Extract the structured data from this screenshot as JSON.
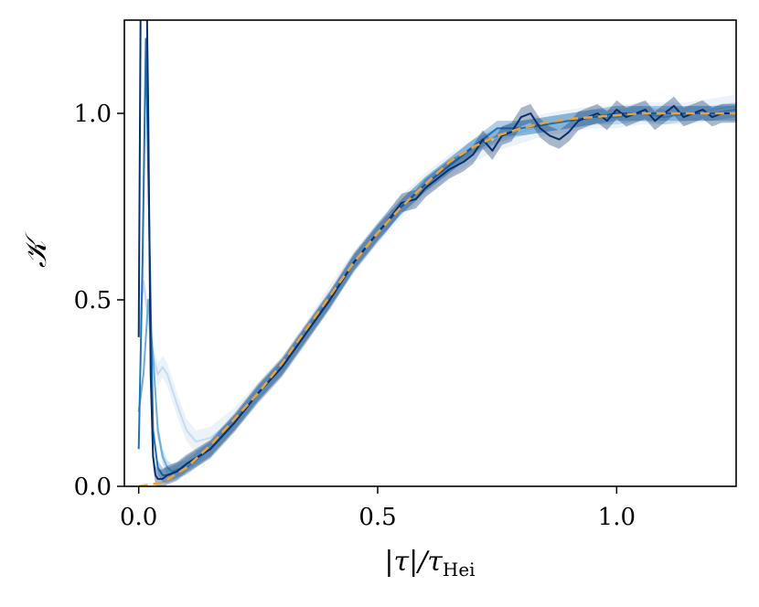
{
  "chart_data": {
    "type": "line",
    "title": "",
    "xlabel_main": "|τ|/τ",
    "xlabel_sub": "Hei",
    "ylabel": "𝒦",
    "xlim": [
      -0.03,
      1.25
    ],
    "ylim": [
      0.0,
      1.25
    ],
    "grid": false,
    "legend": "none",
    "x_ticks": [
      {
        "value": 0.0,
        "label": "0.0"
      },
      {
        "value": 0.5,
        "label": "0.5"
      },
      {
        "value": 1.0,
        "label": "1.0"
      }
    ],
    "y_ticks": [
      {
        "value": 0.0,
        "label": "0.0"
      },
      {
        "value": 0.5,
        "label": "0.5"
      },
      {
        "value": 1.0,
        "label": "1.0"
      }
    ],
    "series": [
      {
        "color": "#c6dbef",
        "band_width": 0.03,
        "x": [
          0.0,
          0.01,
          0.02,
          0.03,
          0.04,
          0.05,
          0.06,
          0.08,
          0.1,
          0.12,
          0.15,
          0.2,
          0.25,
          0.3,
          0.35,
          0.4,
          0.45,
          0.5,
          0.55,
          0.6,
          0.65,
          0.7,
          0.75,
          0.8,
          0.85,
          0.9,
          0.95,
          1.0,
          1.05,
          1.1,
          1.15,
          1.2,
          1.25
        ],
        "y": [
          0.4,
          0.55,
          0.45,
          0.35,
          0.3,
          0.32,
          0.3,
          0.22,
          0.15,
          0.12,
          0.13,
          0.18,
          0.25,
          0.32,
          0.41,
          0.51,
          0.6,
          0.68,
          0.75,
          0.81,
          0.86,
          0.9,
          0.93,
          0.95,
          0.97,
          0.98,
          0.99,
          0.99,
          1.0,
          1.0,
          1.0,
          1.01,
          1.02
        ]
      },
      {
        "color": "#6baed6",
        "band_width": 0.02,
        "x": [
          0.0,
          0.01,
          0.02,
          0.03,
          0.04,
          0.05,
          0.06,
          0.07,
          0.08,
          0.1,
          0.12,
          0.15,
          0.2,
          0.25,
          0.3,
          0.35,
          0.4,
          0.45,
          0.5,
          0.55,
          0.6,
          0.65,
          0.7,
          0.75,
          0.8,
          0.85,
          0.9,
          0.95,
          1.0,
          1.05,
          1.1,
          1.15,
          1.2,
          1.25
        ],
        "y": [
          0.2,
          0.3,
          0.5,
          0.35,
          0.15,
          0.08,
          0.05,
          0.04,
          0.045,
          0.05,
          0.07,
          0.1,
          0.17,
          0.25,
          0.32,
          0.41,
          0.5,
          0.6,
          0.68,
          0.75,
          0.81,
          0.86,
          0.91,
          0.94,
          0.96,
          0.97,
          0.98,
          0.99,
          0.99,
          1.0,
          0.99,
          1.0,
          1.0,
          1.01
        ]
      },
      {
        "color": "#2171b5",
        "band_width": 0.02,
        "x": [
          0.0,
          0.008,
          0.015,
          0.022,
          0.03,
          0.04,
          0.05,
          0.06,
          0.08,
          0.1,
          0.15,
          0.2,
          0.25,
          0.3,
          0.35,
          0.4,
          0.45,
          0.5,
          0.55,
          0.6,
          0.65,
          0.7,
          0.75,
          0.8,
          0.85,
          0.9,
          0.95,
          1.0,
          1.05,
          1.1,
          1.15,
          1.2,
          1.25
        ],
        "y": [
          0.1,
          0.6,
          1.2,
          0.7,
          0.15,
          0.05,
          0.03,
          0.03,
          0.04,
          0.06,
          0.1,
          0.17,
          0.25,
          0.32,
          0.41,
          0.5,
          0.6,
          0.68,
          0.75,
          0.81,
          0.86,
          0.91,
          0.96,
          0.96,
          0.97,
          0.98,
          0.99,
          1.0,
          1.0,
          1.0,
          1.0,
          1.0,
          1.0
        ]
      },
      {
        "color": "#08306b",
        "band_width": 0.025,
        "x": [
          0.0,
          0.005,
          0.01,
          0.015,
          0.02,
          0.025,
          0.03,
          0.035,
          0.04,
          0.05,
          0.06,
          0.08,
          0.1,
          0.15,
          0.2,
          0.25,
          0.3,
          0.35,
          0.4,
          0.45,
          0.5,
          0.52,
          0.55,
          0.58,
          0.6,
          0.62,
          0.65,
          0.68,
          0.7,
          0.72,
          0.74,
          0.76,
          0.78,
          0.8,
          0.82,
          0.84,
          0.86,
          0.88,
          0.9,
          0.92,
          0.94,
          0.96,
          0.98,
          1.0,
          1.02,
          1.04,
          1.06,
          1.08,
          1.1,
          1.12,
          1.14,
          1.16,
          1.18,
          1.2,
          1.22,
          1.25
        ],
        "y": [
          0.4,
          1.5,
          2.0,
          1.5,
          1.0,
          0.3,
          0.08,
          0.03,
          0.02,
          0.02,
          0.03,
          0.04,
          0.06,
          0.1,
          0.17,
          0.25,
          0.32,
          0.41,
          0.5,
          0.6,
          0.68,
          0.71,
          0.76,
          0.77,
          0.8,
          0.82,
          0.85,
          0.87,
          0.89,
          0.93,
          0.9,
          0.94,
          0.95,
          0.99,
          1.0,
          0.96,
          0.94,
          0.93,
          0.95,
          0.98,
          0.99,
          1.0,
          0.98,
          1.01,
          0.99,
          1.0,
          1.01,
          0.98,
          1.0,
          1.02,
          0.99,
          1.0,
          1.01,
          0.99,
          1.0,
          1.0
        ]
      },
      {
        "color": "#e8a33c",
        "dashed": true,
        "x": [
          0.0,
          0.05,
          0.1,
          0.15,
          0.2,
          0.25,
          0.3,
          0.35,
          0.4,
          0.45,
          0.5,
          0.55,
          0.6,
          0.65,
          0.7,
          0.75,
          0.8,
          0.85,
          0.9,
          0.95,
          1.0,
          1.05,
          1.1,
          1.15,
          1.2,
          1.25
        ],
        "y": [
          0.0,
          0.01,
          0.05,
          0.11,
          0.18,
          0.25,
          0.33,
          0.42,
          0.51,
          0.6,
          0.68,
          0.75,
          0.81,
          0.87,
          0.91,
          0.94,
          0.96,
          0.975,
          0.985,
          0.99,
          0.995,
          1.0,
          1.0,
          1.0,
          1.0,
          1.0
        ]
      }
    ]
  }
}
